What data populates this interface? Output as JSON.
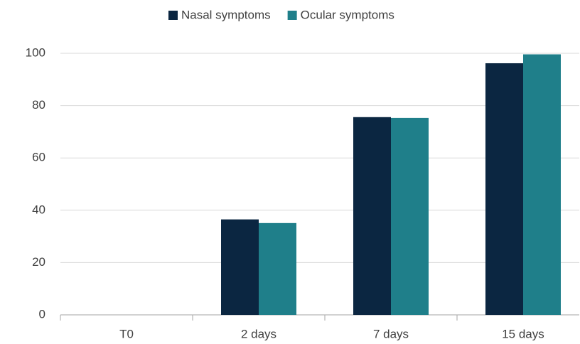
{
  "chart_data": {
    "type": "bar",
    "categories": [
      "T0",
      "2 days",
      "7 days",
      "15 days"
    ],
    "series": [
      {
        "name": "Nasal symptoms",
        "color": "#0b2641",
        "values": [
          0,
          36.5,
          75.6,
          96.2
        ]
      },
      {
        "name": "Ocular symptoms",
        "color": "#1f7f8a",
        "values": [
          0,
          35.1,
          75.3,
          99.6
        ]
      }
    ],
    "ylim": [
      0,
      100
    ],
    "yticks": [
      0,
      20,
      40,
      60,
      80,
      100
    ],
    "grid": true,
    "legend": "top"
  }
}
